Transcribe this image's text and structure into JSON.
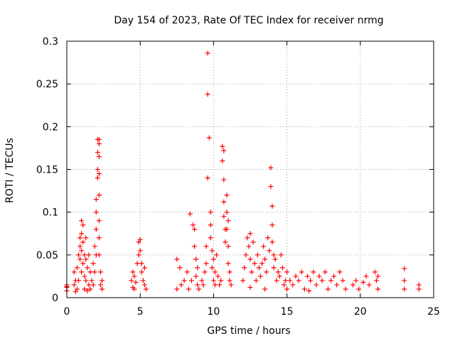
{
  "chart_data": {
    "type": "scatter",
    "title": "Day 154 of 2023, Rate Of TEC Index for receiver nrmg",
    "xlabel": "GPS time / hours",
    "ylabel": "ROTI / TECUs",
    "xlim": [
      0,
      25
    ],
    "ylim": [
      0,
      0.3
    ],
    "xticks": [
      "0",
      "5",
      "10",
      "15",
      "20",
      "25"
    ],
    "xtick_values": [
      0,
      5,
      10,
      15,
      20,
      25
    ],
    "yticks": [
      "0",
      "0.05",
      "0.1",
      "0.15",
      "0.2",
      "0.25",
      "0.3"
    ],
    "ytick_values": [
      0,
      0.05,
      0.1,
      0.15,
      0.2,
      0.25,
      0.3
    ],
    "grid": true,
    "marker": "+",
    "color": "#ff0000",
    "series": [
      {
        "points": [
          [
            0.0,
            0.015
          ],
          [
            0.0,
            0.012
          ],
          [
            0.0,
            0.008
          ],
          [
            0.0,
            0.013
          ],
          [
            0.5,
            0.015
          ],
          [
            0.5,
            0.03
          ],
          [
            0.6,
            0.02
          ],
          [
            0.7,
            0.01
          ],
          [
            0.7,
            0.035
          ],
          [
            0.8,
            0.02
          ],
          [
            0.8,
            0.05
          ],
          [
            0.9,
            0.045
          ],
          [
            0.9,
            0.06
          ],
          [
            0.9,
            0.07
          ],
          [
            1.0,
            0.09
          ],
          [
            1.0,
            0.075
          ],
          [
            1.0,
            0.055
          ],
          [
            1.0,
            0.03
          ],
          [
            1.1,
            0.085
          ],
          [
            1.1,
            0.065
          ],
          [
            1.1,
            0.04
          ],
          [
            1.2,
            0.05
          ],
          [
            1.2,
            0.025
          ],
          [
            1.3,
            0.07
          ],
          [
            1.3,
            0.045
          ],
          [
            1.3,
            0.02
          ],
          [
            1.4,
            0.035
          ],
          [
            1.5,
            0.05
          ],
          [
            1.5,
            0.015
          ],
          [
            1.6,
            0.03
          ],
          [
            1.6,
            0.01
          ],
          [
            1.7,
            0.02
          ],
          [
            1.8,
            0.04
          ],
          [
            1.8,
            0.015
          ],
          [
            1.9,
            0.06
          ],
          [
            1.9,
            0.03
          ],
          [
            2.0,
            0.1
          ],
          [
            2.0,
            0.08
          ],
          [
            2.0,
            0.05
          ],
          [
            2.0,
            0.115
          ],
          [
            2.1,
            0.14
          ],
          [
            2.1,
            0.15
          ],
          [
            2.1,
            0.17
          ],
          [
            2.1,
            0.185
          ],
          [
            2.2,
            0.185
          ],
          [
            2.2,
            0.18
          ],
          [
            2.2,
            0.165
          ],
          [
            2.2,
            0.145
          ],
          [
            2.2,
            0.12
          ],
          [
            2.2,
            0.09
          ],
          [
            2.2,
            0.07
          ],
          [
            2.2,
            0.05
          ],
          [
            2.3,
            0.03
          ],
          [
            2.3,
            0.015
          ],
          [
            2.4,
            0.02
          ],
          [
            2.4,
            0.01
          ],
          [
            1.2,
            0.01
          ],
          [
            1.4,
            0.008
          ],
          [
            0.6,
            0.007
          ],
          [
            4.4,
            0.02
          ],
          [
            4.5,
            0.012
          ],
          [
            4.5,
            0.03
          ],
          [
            4.6,
            0.025
          ],
          [
            4.7,
            0.018
          ],
          [
            4.8,
            0.04
          ],
          [
            4.9,
            0.05
          ],
          [
            4.9,
            0.065
          ],
          [
            5.0,
            0.068
          ],
          [
            5.0,
            0.055
          ],
          [
            5.1,
            0.04
          ],
          [
            5.1,
            0.03
          ],
          [
            5.2,
            0.02
          ],
          [
            5.3,
            0.015
          ],
          [
            5.3,
            0.035
          ],
          [
            5.4,
            0.01
          ],
          [
            4.6,
            0.01
          ],
          [
            7.5,
            0.045
          ],
          [
            7.5,
            0.01
          ],
          [
            7.7,
            0.035
          ],
          [
            7.8,
            0.015
          ],
          [
            8.0,
            0.02
          ],
          [
            8.2,
            0.03
          ],
          [
            8.3,
            0.01
          ],
          [
            8.4,
            0.098
          ],
          [
            8.5,
            0.02
          ],
          [
            8.6,
            0.085
          ],
          [
            8.7,
            0.08
          ],
          [
            8.7,
            0.06
          ],
          [
            8.8,
            0.045
          ],
          [
            8.8,
            0.025
          ],
          [
            8.9,
            0.015
          ],
          [
            8.9,
            0.035
          ],
          [
            9.0,
            0.01
          ],
          [
            9.2,
            0.02
          ],
          [
            9.3,
            0.015
          ],
          [
            9.4,
            0.03
          ],
          [
            9.5,
            0.04
          ],
          [
            9.5,
            0.06
          ],
          [
            9.6,
            0.286
          ],
          [
            9.6,
            0.238
          ],
          [
            9.6,
            0.14
          ],
          [
            9.7,
            0.187
          ],
          [
            9.8,
            0.1
          ],
          [
            9.8,
            0.085
          ],
          [
            9.8,
            0.07
          ],
          [
            9.9,
            0.055
          ],
          [
            9.9,
            0.035
          ],
          [
            10.0,
            0.02
          ],
          [
            10.0,
            0.045
          ],
          [
            10.1,
            0.03
          ],
          [
            10.1,
            0.015
          ],
          [
            10.2,
            0.05
          ],
          [
            10.3,
            0.025
          ],
          [
            10.4,
            0.015
          ],
          [
            10.5,
            0.02
          ],
          [
            10.6,
            0.177
          ],
          [
            10.6,
            0.16
          ],
          [
            10.7,
            0.172
          ],
          [
            10.7,
            0.138
          ],
          [
            10.7,
            0.112
          ],
          [
            10.7,
            0.095
          ],
          [
            10.8,
            0.08
          ],
          [
            10.8,
            0.065
          ],
          [
            10.9,
            0.12
          ],
          [
            10.9,
            0.1
          ],
          [
            10.9,
            0.08
          ],
          [
            11.0,
            0.09
          ],
          [
            11.0,
            0.06
          ],
          [
            11.0,
            0.04
          ],
          [
            11.1,
            0.03
          ],
          [
            11.1,
            0.02
          ],
          [
            11.2,
            0.015
          ],
          [
            12.0,
            0.02
          ],
          [
            12.1,
            0.035
          ],
          [
            12.2,
            0.05
          ],
          [
            12.3,
            0.07
          ],
          [
            12.4,
            0.06
          ],
          [
            12.5,
            0.075
          ],
          [
            12.5,
            0.045
          ],
          [
            12.6,
            0.03
          ],
          [
            12.7,
            0.065
          ],
          [
            12.8,
            0.04
          ],
          [
            12.9,
            0.02
          ],
          [
            13.0,
            0.05
          ],
          [
            13.1,
            0.035
          ],
          [
            13.2,
            0.025
          ],
          [
            13.3,
            0.04
          ],
          [
            13.4,
            0.06
          ],
          [
            13.5,
            0.045
          ],
          [
            13.6,
            0.03
          ],
          [
            13.7,
            0.07
          ],
          [
            13.8,
            0.055
          ],
          [
            13.9,
            0.152
          ],
          [
            13.9,
            0.13
          ],
          [
            14.0,
            0.107
          ],
          [
            14.0,
            0.085
          ],
          [
            14.0,
            0.065
          ],
          [
            14.1,
            0.05
          ],
          [
            14.1,
            0.035
          ],
          [
            14.2,
            0.045
          ],
          [
            14.3,
            0.02
          ],
          [
            14.4,
            0.03
          ],
          [
            14.5,
            0.025
          ],
          [
            14.6,
            0.05
          ],
          [
            14.7,
            0.035
          ],
          [
            14.8,
            0.015
          ],
          [
            14.9,
            0.02
          ],
          [
            15.0,
            0.03
          ],
          [
            15.2,
            0.02
          ],
          [
            15.4,
            0.015
          ],
          [
            15.6,
            0.025
          ],
          [
            15.8,
            0.02
          ],
          [
            16.0,
            0.03
          ],
          [
            16.2,
            0.01
          ],
          [
            16.4,
            0.025
          ],
          [
            16.6,
            0.02
          ],
          [
            16.8,
            0.03
          ],
          [
            17.0,
            0.015
          ],
          [
            17.2,
            0.025
          ],
          [
            17.4,
            0.02
          ],
          [
            17.6,
            0.03
          ],
          [
            17.8,
            0.01
          ],
          [
            18.0,
            0.02
          ],
          [
            18.2,
            0.025
          ],
          [
            18.4,
            0.015
          ],
          [
            18.6,
            0.03
          ],
          [
            18.8,
            0.02
          ],
          [
            19.0,
            0.01
          ],
          [
            12.5,
            0.012
          ],
          [
            13.5,
            0.01
          ],
          [
            15.0,
            0.01
          ],
          [
            16.5,
            0.008
          ],
          [
            19.5,
            0.015
          ],
          [
            19.7,
            0.02
          ],
          [
            19.9,
            0.01
          ],
          [
            20.2,
            0.018
          ],
          [
            20.4,
            0.025
          ],
          [
            20.6,
            0.015
          ],
          [
            21.0,
            0.03
          ],
          [
            21.1,
            0.02
          ],
          [
            21.2,
            0.025
          ],
          [
            21.2,
            0.01
          ],
          [
            23.0,
            0.034
          ],
          [
            23.0,
            0.02
          ],
          [
            23.0,
            0.01
          ],
          [
            24.0,
            0.015
          ],
          [
            24.0,
            0.01
          ]
        ]
      }
    ]
  }
}
